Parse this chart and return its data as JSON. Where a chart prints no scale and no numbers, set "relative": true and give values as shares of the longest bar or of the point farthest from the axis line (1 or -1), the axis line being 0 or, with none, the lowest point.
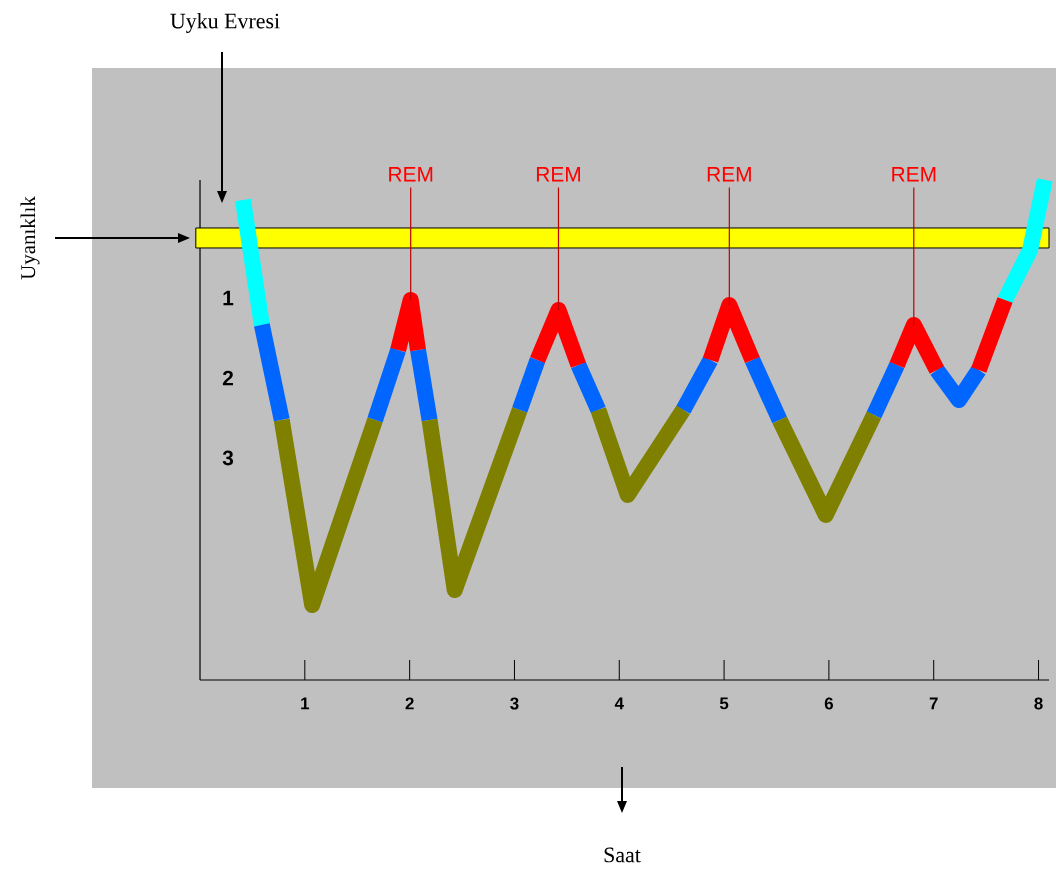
{
  "chart_data": {
    "type": "line",
    "relative": true,
    "x": [
      0.41,
      0.59,
      0.78,
      1.07,
      1.67,
      1.89,
      2.01,
      2.08,
      2.19,
      2.43,
      3.05,
      3.22,
      3.42,
      3.61,
      3.8,
      4.08,
      4.61,
      4.87,
      5.05,
      5.27,
      5.53,
      5.97,
      6.43,
      6.65,
      6.81,
      7.03,
      7.24,
      7.43,
      7.68,
      7.92,
      8.06
    ],
    "xlim": [
      0,
      8.1
    ],
    "xticks": [
      1,
      2,
      3,
      4,
      5,
      6,
      7,
      8
    ],
    "series": [
      {
        "color": "#00ffff",
        "values": [
          0.96,
          0.71,
          null,
          null,
          null,
          null,
          null,
          null,
          null,
          null,
          null,
          null,
          null,
          null,
          null,
          null,
          null,
          null,
          null,
          null,
          null,
          null,
          null,
          null,
          null,
          null,
          null,
          null,
          0.76,
          0.86,
          1.0
        ]
      },
      {
        "color": "#0066ff",
        "values": [
          null,
          0.71,
          0.52,
          null,
          0.52,
          0.66,
          null,
          0.66,
          0.52,
          null,
          0.54,
          0.64,
          null,
          0.63,
          0.54,
          null,
          0.54,
          0.64,
          null,
          0.64,
          0.52,
          null,
          0.53,
          0.63,
          null,
          0.62,
          0.56,
          0.62,
          null,
          null,
          null
        ]
      },
      {
        "color": "#ff0000",
        "values": [
          null,
          null,
          null,
          null,
          null,
          0.66,
          0.76,
          0.66,
          null,
          null,
          null,
          0.64,
          0.74,
          0.63,
          null,
          null,
          null,
          0.64,
          0.75,
          0.64,
          null,
          null,
          null,
          0.63,
          0.71,
          0.62,
          null,
          0.62,
          0.76,
          null,
          null
        ]
      },
      {
        "color": "#808000",
        "values": [
          null,
          null,
          0.52,
          0.15,
          0.52,
          null,
          null,
          null,
          0.52,
          0.18,
          0.54,
          null,
          null,
          null,
          0.54,
          0.37,
          0.54,
          null,
          null,
          null,
          0.52,
          0.33,
          0.53,
          null,
          null,
          null,
          null,
          null,
          null,
          null,
          null
        ]
      }
    ],
    "bands": [
      {
        "axis": "y",
        "from": 0.864,
        "to": 0.904,
        "label": "Uyanıklık",
        "color": "#ffff00"
      }
    ],
    "annotations": [
      "Uyku Evresi",
      "1",
      "2",
      "3",
      "Saat",
      {
        "text": "REM",
        "x": 2.01,
        "y": 0.76
      },
      {
        "text": "REM",
        "x": 3.42,
        "y": 0.74
      },
      {
        "text": "REM",
        "x": 5.05,
        "y": 0.75
      },
      {
        "text": "REM",
        "x": 6.81,
        "y": 0.71
      }
    ],
    "marker": "none",
    "line_style": "solid"
  }
}
